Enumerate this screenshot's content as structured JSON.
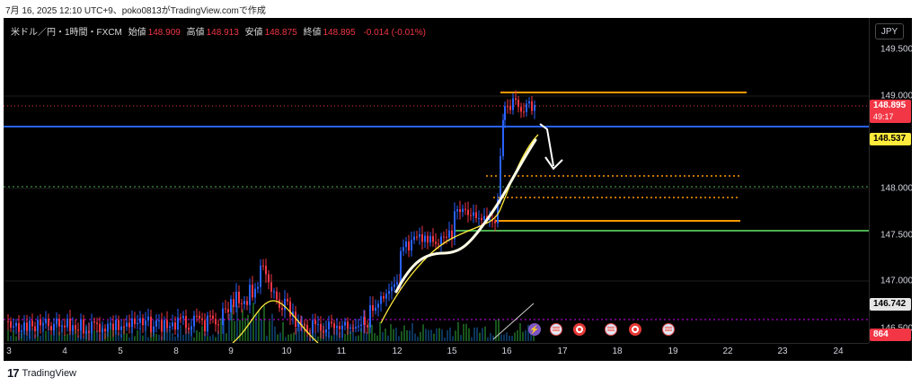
{
  "caption": "7月 16, 2025 12:10 UTC+9、poko0813がTradingView.comで作成",
  "legend": {
    "symbol": "米ドル／円・1時間・FXCM",
    "open_label": "始値",
    "open": "148.909",
    "high_label": "高値",
    "high": "148.913",
    "low_label": "安値",
    "low": "148.875",
    "close_label": "終値",
    "close": "148.895",
    "change": "-0.014 (-0.01%)"
  },
  "currency_button": "JPY",
  "price_axis": {
    "ticks": [
      "149.500",
      "149.000",
      "148.000",
      "147.500",
      "147.000",
      "146.500"
    ]
  },
  "tags": {
    "current_price": "148.895",
    "countdown": "49:17",
    "blue_line_price": "148.537",
    "ma_price": "146.742",
    "volume": "864"
  },
  "time_axis": [
    "3",
    "4",
    "5",
    "8",
    "9",
    "10",
    "11",
    "12",
    "15",
    "16",
    "17",
    "18",
    "19",
    "22",
    "23",
    "24"
  ],
  "events": [
    "bolt",
    "flag-us",
    "target-jp",
    "flag-us",
    "target-jp",
    "flag-us"
  ],
  "brand": "TradingView",
  "colors": {
    "up": "#2962ff",
    "down": "#f23645",
    "orange": "#ff9800",
    "green": "#4caf50",
    "blue_line": "#2962ff",
    "yellow": "#ffeb3b"
  }
}
